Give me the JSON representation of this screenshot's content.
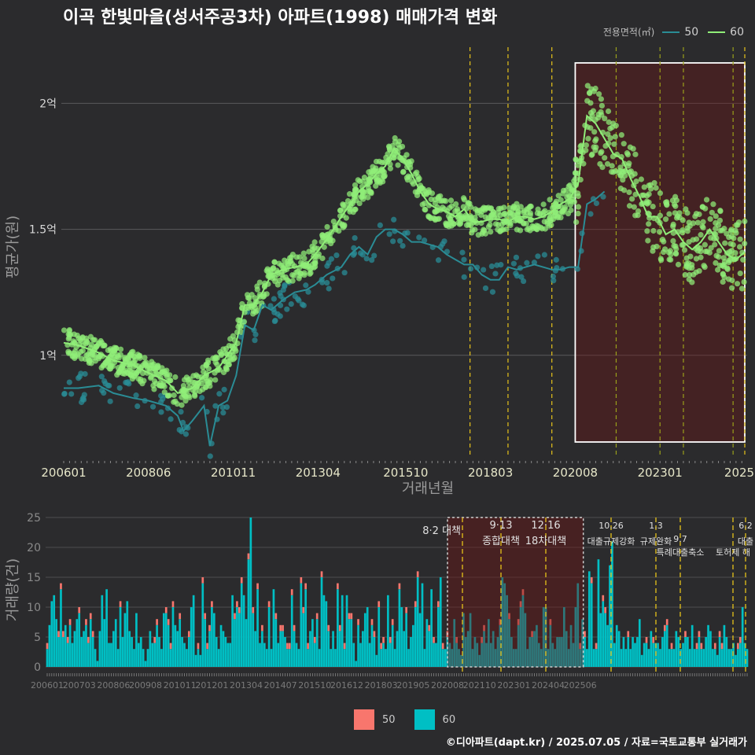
{
  "title": "이곡 한빛마을(성서주공3차) 아파트(1998) 매매가격 변화",
  "footer": "©디아파트(dapt.kr) / 2025.07.05 / 자료=국토교통부 실거래가",
  "legend_top": {
    "title": "전용면적(㎡)",
    "items": [
      {
        "label": "50",
        "color": "#2a8c95"
      },
      {
        "label": "60",
        "color": "#90ee78"
      }
    ]
  },
  "legend_bottom": {
    "items": [
      {
        "label": "50",
        "color": "#f8766d"
      },
      {
        "label": "60",
        "color": "#00bfc4"
      }
    ]
  },
  "chart_data": [
    {
      "type": "line",
      "xlabel": "거래년월",
      "ylabel": "평균가(원)",
      "x_tick_labels": [
        "200601",
        "200806",
        "201011",
        "201304",
        "201510",
        "201803",
        "202008",
        "202301",
        "2025"
      ],
      "y_tick_labels": [
        "1억",
        "1.5억",
        "2억"
      ],
      "y_ticks": [
        100000000,
        150000000,
        200000000
      ],
      "ylim": [
        60000000,
        226000000
      ],
      "xlim": [
        "2006-01",
        "2025-06"
      ],
      "grid": true,
      "highlight_range": [
        "2020-08",
        "2025-06"
      ],
      "policy_lines": [
        "2017-08",
        "2018-09",
        "2019-12",
        "2021-10",
        "2023-01",
        "2023-09",
        "2025-02",
        "2025-06"
      ],
      "series": [
        {
          "name": "50",
          "color": "#2a8c95",
          "x": [
            "2006-01",
            "2006-06",
            "2007-01",
            "2007-06",
            "2008-01",
            "2008-06",
            "2008-12",
            "2009-04",
            "2009-06",
            "2009-09",
            "2010-01",
            "2010-03",
            "2010-06",
            "2010-09",
            "2010-12",
            "2011-03",
            "2011-06",
            "2011-09",
            "2011-12",
            "2012-04",
            "2012-08",
            "2012-12",
            "2013-03",
            "2013-07",
            "2013-12",
            "2014-03",
            "2014-06",
            "2014-09",
            "2014-12",
            "2015-03",
            "2015-06",
            "2015-09",
            "2015-12",
            "2016-03",
            "2016-06",
            "2016-09",
            "2016-12",
            "2017-03",
            "2017-06",
            "2017-09",
            "2017-12",
            "2018-03",
            "2018-06",
            "2018-09",
            "2018-12",
            "2019-03",
            "2019-06",
            "2019-09",
            "2019-12",
            "2020-03",
            "2020-06",
            "2020-09",
            "2020-12",
            "2021-03",
            "2021-06"
          ],
          "y": [
            87000000,
            87000000,
            88000000,
            85000000,
            83000000,
            82000000,
            80000000,
            76000000,
            70000000,
            74000000,
            80000000,
            64000000,
            80000000,
            82000000,
            92000000,
            112000000,
            110000000,
            120000000,
            118000000,
            122000000,
            125000000,
            126000000,
            128000000,
            132000000,
            135000000,
            140000000,
            143000000,
            140000000,
            147000000,
            150000000,
            150000000,
            148000000,
            145000000,
            145000000,
            144000000,
            143000000,
            140000000,
            138000000,
            136000000,
            136000000,
            132000000,
            130000000,
            130000000,
            135000000,
            134000000,
            135000000,
            136000000,
            135000000,
            134000000,
            134000000,
            135000000,
            135000000,
            160000000,
            162000000,
            165000000
          ]
        },
        {
          "name": "60",
          "color": "#90ee78",
          "x": [
            "2006-01",
            "2006-06",
            "2007-01",
            "2007-06",
            "2008-01",
            "2008-06",
            "2008-12",
            "2009-04",
            "2009-09",
            "2010-01",
            "2010-06",
            "2010-12",
            "2011-03",
            "2011-06",
            "2011-09",
            "2011-12",
            "2012-04",
            "2012-08",
            "2012-12",
            "2013-03",
            "2013-07",
            "2013-12",
            "2014-03",
            "2014-06",
            "2014-09",
            "2014-12",
            "2015-03",
            "2015-06",
            "2015-09",
            "2015-12",
            "2016-03",
            "2016-06",
            "2016-09",
            "2016-12",
            "2017-03",
            "2017-06",
            "2017-09",
            "2017-12",
            "2018-03",
            "2018-06",
            "2018-09",
            "2018-12",
            "2019-03",
            "2019-06",
            "2019-09",
            "2019-12",
            "2020-03",
            "2020-06",
            "2020-09",
            "2020-12",
            "2021-03",
            "2021-06",
            "2021-09",
            "2021-12",
            "2022-03",
            "2022-06",
            "2022-09",
            "2022-12",
            "2023-03",
            "2023-06",
            "2023-09",
            "2023-12",
            "2024-03",
            "2024-06",
            "2024-09",
            "2024-12",
            "2025-03",
            "2025-06"
          ],
          "y": [
            105000000,
            104000000,
            101000000,
            98000000,
            96000000,
            93000000,
            90000000,
            85000000,
            87000000,
            92000000,
            95000000,
            105000000,
            120000000,
            120000000,
            125000000,
            132000000,
            134000000,
            135000000,
            136000000,
            140000000,
            146000000,
            155000000,
            160000000,
            165000000,
            168000000,
            172000000,
            175000000,
            182000000,
            178000000,
            172000000,
            165000000,
            160000000,
            158000000,
            157000000,
            155000000,
            158000000,
            153000000,
            153000000,
            154000000,
            154000000,
            153000000,
            155000000,
            155000000,
            154000000,
            155000000,
            157000000,
            160000000,
            162000000,
            168000000,
            195000000,
            192000000,
            186000000,
            180000000,
            178000000,
            170000000,
            163000000,
            155000000,
            155000000,
            148000000,
            150000000,
            145000000,
            142000000,
            145000000,
            150000000,
            145000000,
            140000000,
            138000000,
            141000000
          ]
        }
      ]
    },
    {
      "type": "bar",
      "stacked": true,
      "ylabel": "거래량(건)",
      "ylim": [
        0,
        25
      ],
      "y_tick_labels": [
        "0",
        "5",
        "10",
        "15",
        "20",
        "25"
      ],
      "x_tick_labels": [
        "200601",
        "200703",
        "200806",
        "200908",
        "201011",
        "201201",
        "201304",
        "201407",
        "201510",
        "201612",
        "201803",
        "201905",
        "202008",
        "202110",
        "202301",
        "202404",
        "202506"
      ],
      "highlight_range": [
        "2020-08",
        "2025-06"
      ],
      "annotations": [
        {
          "date": "2017-08",
          "label": "8·2 대책"
        },
        {
          "date": "2018-09",
          "label": "9·13\n종합대책"
        },
        {
          "date": "2019-12",
          "label": "12·16\n18차대책"
        },
        {
          "date": "2021-10",
          "label": "10.26\n대출규제강화"
        },
        {
          "date": "2023-01",
          "label": "1.3\n규제완화"
        },
        {
          "date": "2023-09",
          "label": "9.7\n특례대출축소"
        },
        {
          "date": "2025-02",
          "label": "토허제 해"
        },
        {
          "date": "2025-06",
          "label": "6.2\n대출"
        }
      ],
      "series": [
        {
          "name": "50",
          "color": "#f8766d",
          "values_note": "small share per month"
        },
        {
          "name": "60",
          "color": "#00bfc4"
        }
      ],
      "monthly_totals": [
        4,
        7,
        11,
        12,
        8,
        6,
        14,
        6,
        7,
        5,
        8,
        4,
        6,
        8,
        10,
        5,
        6,
        8,
        5,
        9,
        6,
        3,
        1,
        6,
        12,
        8,
        13,
        4,
        4,
        6,
        8,
        3,
        11,
        5,
        9,
        11,
        6,
        5,
        3,
        9,
        4,
        5,
        3,
        1,
        3,
        6,
        4,
        5,
        8,
        5,
        3,
        9,
        10,
        8,
        4,
        11,
        7,
        6,
        9,
        5,
        4,
        3,
        6,
        10,
        12,
        2,
        4,
        2,
        15,
        9,
        4,
        7,
        11,
        9,
        5,
        3,
        7,
        6,
        5,
        4,
        4,
        12,
        9,
        11,
        10,
        15,
        12,
        8,
        19,
        25,
        10,
        6,
        14,
        4,
        7,
        4,
        3,
        11,
        3,
        13,
        9,
        4,
        7,
        7,
        5,
        4,
        4,
        13,
        7,
        4,
        3,
        15,
        10,
        14,
        4,
        6,
        8,
        5,
        9,
        3,
        16,
        12,
        11,
        7,
        3,
        6,
        3,
        14,
        7,
        12,
        4,
        12,
        9,
        9,
        4,
        1,
        8,
        4,
        6,
        9,
        10,
        4,
        8,
        6,
        2,
        11,
        4,
        5,
        3,
        12,
        5,
        8,
        3,
        6,
        14,
        10,
        6,
        10,
        3,
        5,
        7,
        11,
        16,
        9,
        14,
        3,
        8,
        7,
        13,
        5,
        4,
        11,
        15,
        4,
        3,
        6,
        4,
        3,
        8,
        5,
        3,
        2,
        9,
        5,
        6,
        9,
        3,
        5,
        4,
        2,
        5,
        7,
        4,
        8,
        4,
        6,
        3,
        5,
        8,
        15,
        14,
        12,
        9,
        5,
        3,
        3,
        8,
        11,
        13,
        9,
        3,
        5,
        6,
        6,
        7,
        4,
        3,
        10,
        10,
        3,
        8,
        4,
        3,
        5,
        5,
        5,
        10,
        6,
        3,
        7,
        4,
        10,
        14,
        4,
        8,
        6,
        3,
        16,
        15,
        3,
        4,
        18,
        9,
        12,
        10,
        7,
        17,
        21,
        4,
        7,
        6,
        3,
        5,
        3,
        6,
        3,
        5,
        4,
        5,
        8,
        2,
        4,
        5,
        3,
        6,
        5,
        4,
        4,
        3,
        5,
        7,
        8,
        3,
        4,
        3,
        6,
        5,
        3,
        4,
        6,
        5,
        3,
        7,
        3,
        4,
        6,
        4,
        3,
        5,
        7,
        6,
        3,
        4,
        2,
        6,
        4,
        7,
        5,
        3,
        3,
        4,
        2,
        4,
        5,
        10,
        4,
        3
      ]
    }
  ]
}
